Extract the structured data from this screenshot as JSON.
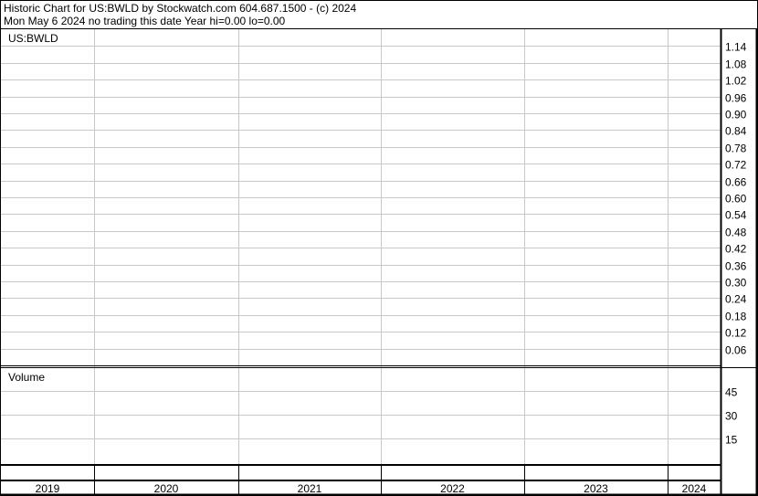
{
  "header": {
    "title": "Historic Chart for US:BWLD by Stockwatch.com 604.687.1500 - (c) 2024",
    "status": "Mon May  6 2024   no trading this date  Year hi=0.00  lo=0.00"
  },
  "chart_data": [
    {
      "type": "line",
      "title": "US:BWLD",
      "ylim": [
        0,
        1.2
      ],
      "yticks": [
        "1.14",
        "1.08",
        "1.02",
        "0.96",
        "0.90",
        "0.84",
        "0.78",
        "0.72",
        "0.66",
        "0.60",
        "0.54",
        "0.48",
        "0.42",
        "0.36",
        "0.30",
        "0.24",
        "0.18",
        "0.12",
        "0.06"
      ],
      "grid": true,
      "series": []
    },
    {
      "type": "bar",
      "title": "Volume",
      "ylim": [
        0,
        60
      ],
      "yticks": [
        "45",
        "30",
        "15"
      ],
      "grid": true,
      "series": []
    }
  ],
  "xaxis": {
    "years": [
      "2019",
      "2020",
      "2021",
      "2022",
      "2023",
      "2024"
    ]
  },
  "colors": {
    "grid": "#c8c8c8",
    "axis": "#000000",
    "background": "#ffffff"
  }
}
